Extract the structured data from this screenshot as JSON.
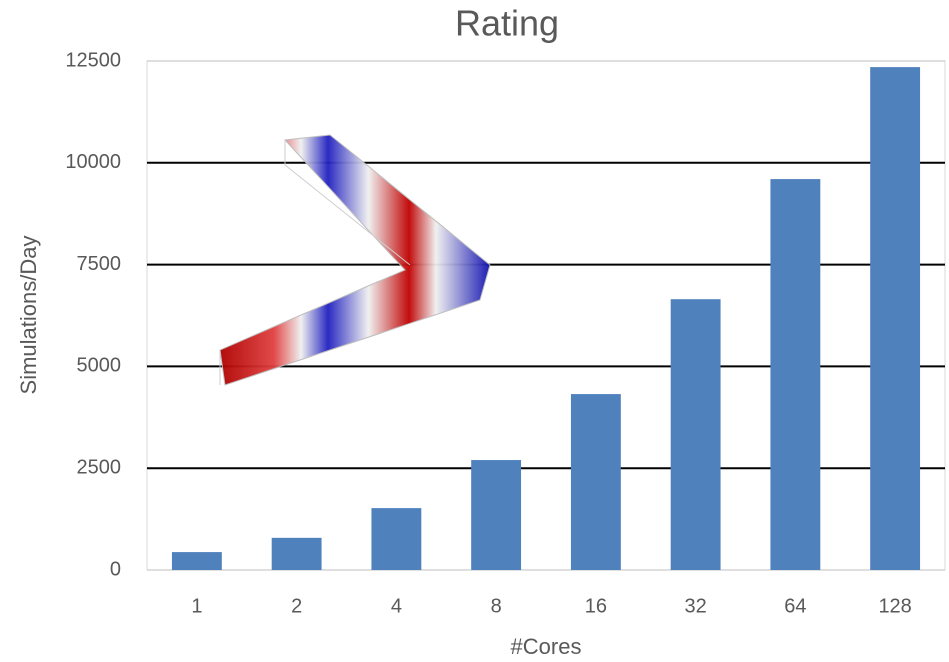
{
  "chart_data": {
    "type": "bar",
    "title": "Rating",
    "x_label": "#Cores",
    "y_label": "Simulations/Day",
    "categories": [
      "1",
      "2",
      "4",
      "8",
      "16",
      "32",
      "64",
      "128"
    ],
    "values": [
      440,
      790,
      1520,
      2700,
      4320,
      6650,
      9600,
      12350
    ],
    "color": "#4f81bd",
    "ylim": [
      0,
      12500
    ],
    "yticks": [
      0,
      2500,
      5000,
      7500,
      10000,
      12500
    ],
    "grid": true
  }
}
